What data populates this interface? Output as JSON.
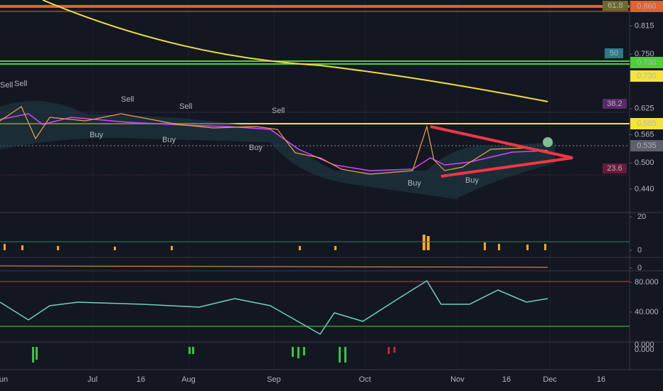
{
  "price_axis": {
    "ticks": [
      {
        "value": 0.815,
        "label": "0.815"
      },
      {
        "value": 0.75,
        "label": "0.750"
      },
      {
        "value": 0.625,
        "label": "0.625"
      },
      {
        "value": 0.565,
        "label": "0.565"
      },
      {
        "value": 0.5,
        "label": "0.500"
      },
      {
        "value": 0.44,
        "label": "0.440"
      }
    ]
  },
  "price_tags": [
    {
      "label": "0.860"
    },
    {
      "label": "0.730"
    },
    {
      "label": "0.730"
    },
    {
      "label": "0.585"
    },
    {
      "label": "0.535"
    }
  ],
  "fib_labels": [
    "61.8",
    "50",
    "38.2",
    "23.6"
  ],
  "volume_axis": {
    "ticks": [
      20,
      0
    ]
  },
  "osc_axis": {
    "ticks": [
      0
    ]
  },
  "rsi_axis": {
    "ticks": [
      {
        "value": 80,
        "label": "80.000"
      },
      {
        "value": 40,
        "label": "40.000"
      }
    ]
  },
  "macd_axis": {
    "ticks": [
      "0.000",
      "0.000"
    ]
  },
  "time_axis": {
    "labels": [
      "un",
      "Jul",
      "16",
      "Aug",
      "Sep",
      "Oct",
      "Nov",
      "16",
      "Dec",
      "16"
    ]
  },
  "signals": [
    "Sell",
    "Sell",
    "Sell",
    "Sell",
    "Sell",
    "Buy",
    "Buy",
    "Buy",
    "Buy",
    "Buy"
  ]
}
